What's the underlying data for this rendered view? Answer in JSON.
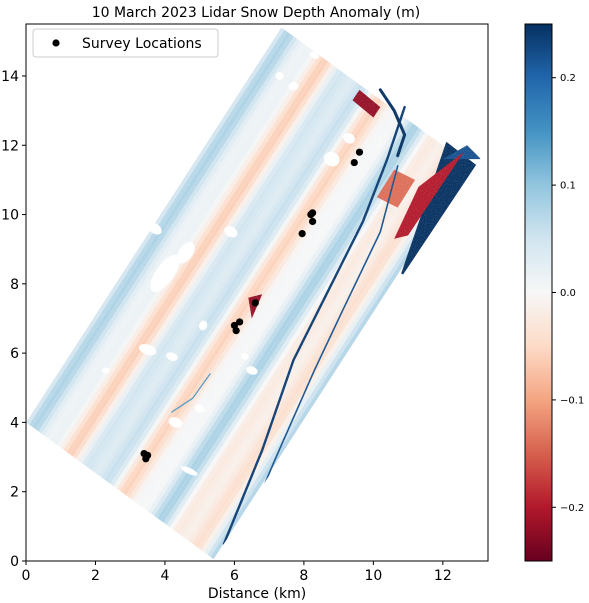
{
  "chart_data": {
    "type": "heatmap",
    "title": "10 March 2023 Lidar Snow Depth Anomaly (m)",
    "xlabel": "Distance (km)",
    "ylabel": "",
    "xlim": [
      0,
      13.3
    ],
    "ylim": [
      0,
      15.5
    ],
    "xticks": [
      0,
      2,
      4,
      6,
      8,
      10,
      12
    ],
    "yticks": [
      0,
      2,
      4,
      6,
      8,
      10,
      12,
      14
    ],
    "grid": false,
    "legend": {
      "placement": "top-left",
      "entries": [
        "Survey Locations"
      ]
    },
    "colorbar": {
      "colormap": "RdBu",
      "range": [
        -0.25,
        0.25
      ],
      "ticks": [
        -0.2,
        -0.1,
        0.0,
        0.1,
        0.2
      ],
      "tick_labels": [
        "−0.2",
        "−0.1",
        "0.0",
        "0.1",
        "0.2"
      ],
      "colors": [
        "#67001f",
        "#b2182b",
        "#d6604d",
        "#f4a582",
        "#fddbc7",
        "#f7f7f7",
        "#d1e5f0",
        "#92c5de",
        "#4393c3",
        "#2166ac",
        "#053061"
      ]
    },
    "survey_points": [
      {
        "x": 3.4,
        "y": 3.1
      },
      {
        "x": 3.5,
        "y": 3.05
      },
      {
        "x": 3.45,
        "y": 2.95
      },
      {
        "x": 6.0,
        "y": 6.8
      },
      {
        "x": 6.05,
        "y": 6.65
      },
      {
        "x": 6.15,
        "y": 6.9
      },
      {
        "x": 6.6,
        "y": 7.45
      },
      {
        "x": 7.95,
        "y": 9.45
      },
      {
        "x": 8.2,
        "y": 10.0
      },
      {
        "x": 8.25,
        "y": 10.05
      },
      {
        "x": 8.25,
        "y": 9.8
      },
      {
        "x": 9.45,
        "y": 11.5
      },
      {
        "x": 9.6,
        "y": 11.8
      }
    ]
  }
}
